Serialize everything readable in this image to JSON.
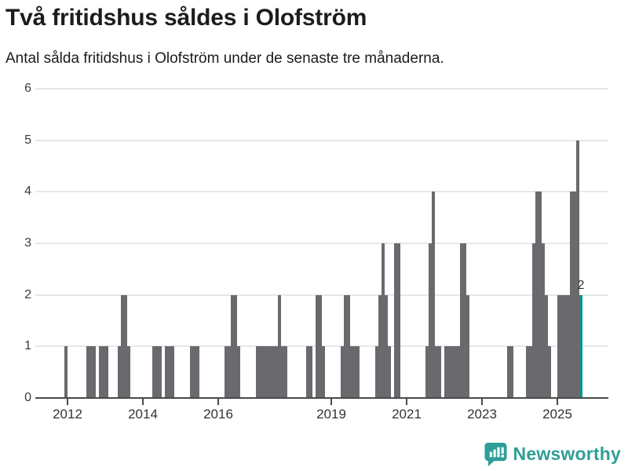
{
  "header": {
    "title": "Två fritidshus såldes i Olofström",
    "subtitle": "Antal sålda fritidshus i Olofström under de senaste tre månaderna."
  },
  "footer": {
    "logo_text": "Newsworthy"
  },
  "colors": {
    "bar": "#6a696e",
    "highlight": "#0d948c",
    "gridline": "#e7e7e7",
    "axis": "#4a4a4a",
    "title_text": "#1c1c1c",
    "tick_label": "#333333",
    "logo": "#2f9e97"
  },
  "chart_data": {
    "type": "bar",
    "title": "Två fritidshus såldes i Olofström",
    "subtitle": "Antal sålda fritidshus i Olofström under de senaste tre månaderna.",
    "xlabel": "",
    "ylabel": "",
    "ylim": [
      0,
      6
    ],
    "y_ticks": [
      0,
      1,
      2,
      3,
      4,
      5,
      6
    ],
    "x_tick_years": [
      2012,
      2014,
      2016,
      2019,
      2021,
      2023,
      2025
    ],
    "grid": "horizontal",
    "legend": "none",
    "zero_months_omitted": true,
    "highlight": {
      "month": "2025-08",
      "value": 2,
      "label": "2"
    },
    "points": [
      {
        "month": "2011-12",
        "value": 1
      },
      {
        "month": "2012-07",
        "value": 1
      },
      {
        "month": "2012-08",
        "value": 1
      },
      {
        "month": "2012-09",
        "value": 1
      },
      {
        "month": "2012-11",
        "value": 1
      },
      {
        "month": "2012-12",
        "value": 1
      },
      {
        "month": "2013-01",
        "value": 1
      },
      {
        "month": "2013-05",
        "value": 1
      },
      {
        "month": "2013-06",
        "value": 2
      },
      {
        "month": "2013-07",
        "value": 2
      },
      {
        "month": "2013-08",
        "value": 1
      },
      {
        "month": "2014-04",
        "value": 1
      },
      {
        "month": "2014-05",
        "value": 1
      },
      {
        "month": "2014-06",
        "value": 1
      },
      {
        "month": "2014-08",
        "value": 1
      },
      {
        "month": "2014-09",
        "value": 1
      },
      {
        "month": "2014-10",
        "value": 1
      },
      {
        "month": "2015-04",
        "value": 1
      },
      {
        "month": "2015-05",
        "value": 1
      },
      {
        "month": "2015-06",
        "value": 1
      },
      {
        "month": "2016-03",
        "value": 1
      },
      {
        "month": "2016-04",
        "value": 1
      },
      {
        "month": "2016-05",
        "value": 2
      },
      {
        "month": "2016-06",
        "value": 2
      },
      {
        "month": "2016-07",
        "value": 1
      },
      {
        "month": "2017-01",
        "value": 1
      },
      {
        "month": "2017-02",
        "value": 1
      },
      {
        "month": "2017-03",
        "value": 1
      },
      {
        "month": "2017-04",
        "value": 1
      },
      {
        "month": "2017-05",
        "value": 1
      },
      {
        "month": "2017-06",
        "value": 1
      },
      {
        "month": "2017-07",
        "value": 1
      },
      {
        "month": "2017-08",
        "value": 2
      },
      {
        "month": "2017-09",
        "value": 1
      },
      {
        "month": "2017-10",
        "value": 1
      },
      {
        "month": "2018-05",
        "value": 1
      },
      {
        "month": "2018-06",
        "value": 1
      },
      {
        "month": "2018-08",
        "value": 2
      },
      {
        "month": "2018-09",
        "value": 2
      },
      {
        "month": "2018-10",
        "value": 1
      },
      {
        "month": "2019-04",
        "value": 1
      },
      {
        "month": "2019-05",
        "value": 2
      },
      {
        "month": "2019-06",
        "value": 2
      },
      {
        "month": "2019-07",
        "value": 1
      },
      {
        "month": "2019-08",
        "value": 1
      },
      {
        "month": "2019-09",
        "value": 1
      },
      {
        "month": "2020-03",
        "value": 1
      },
      {
        "month": "2020-04",
        "value": 2
      },
      {
        "month": "2020-05",
        "value": 3
      },
      {
        "month": "2020-06",
        "value": 2
      },
      {
        "month": "2020-07",
        "value": 1
      },
      {
        "month": "2020-09",
        "value": 3
      },
      {
        "month": "2020-10",
        "value": 3
      },
      {
        "month": "2021-07",
        "value": 1
      },
      {
        "month": "2021-08",
        "value": 3
      },
      {
        "month": "2021-09",
        "value": 4
      },
      {
        "month": "2021-10",
        "value": 1
      },
      {
        "month": "2021-11",
        "value": 1
      },
      {
        "month": "2022-01",
        "value": 1
      },
      {
        "month": "2022-02",
        "value": 1
      },
      {
        "month": "2022-03",
        "value": 1
      },
      {
        "month": "2022-04",
        "value": 1
      },
      {
        "month": "2022-05",
        "value": 1
      },
      {
        "month": "2022-06",
        "value": 3
      },
      {
        "month": "2022-07",
        "value": 3
      },
      {
        "month": "2022-08",
        "value": 2
      },
      {
        "month": "2023-09",
        "value": 1
      },
      {
        "month": "2023-10",
        "value": 1
      },
      {
        "month": "2024-03",
        "value": 1
      },
      {
        "month": "2024-04",
        "value": 1
      },
      {
        "month": "2024-05",
        "value": 3
      },
      {
        "month": "2024-06",
        "value": 4
      },
      {
        "month": "2024-07",
        "value": 4
      },
      {
        "month": "2024-08",
        "value": 3
      },
      {
        "month": "2024-09",
        "value": 2
      },
      {
        "month": "2024-10",
        "value": 1
      },
      {
        "month": "2025-01",
        "value": 2
      },
      {
        "month": "2025-02",
        "value": 2
      },
      {
        "month": "2025-03",
        "value": 2
      },
      {
        "month": "2025-04",
        "value": 2
      },
      {
        "month": "2025-05",
        "value": 4
      },
      {
        "month": "2025-06",
        "value": 4
      },
      {
        "month": "2025-07",
        "value": 5
      },
      {
        "month": "2025-08",
        "value": 2
      }
    ]
  }
}
